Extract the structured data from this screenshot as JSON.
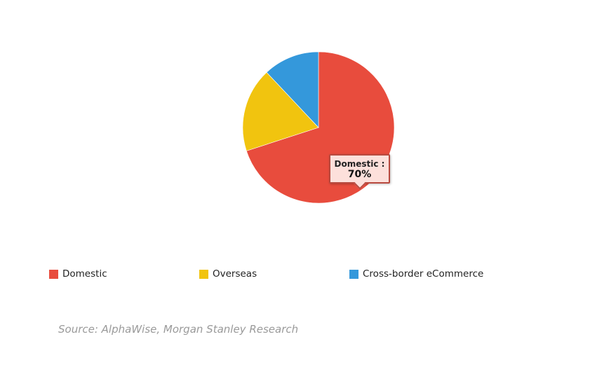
{
  "chart_data": {
    "type": "pie",
    "categories": [
      "Domestic",
      "Overseas",
      "Cross-border eCommerce"
    ],
    "values": [
      70,
      18,
      12
    ],
    "unit": "%",
    "colors": [
      "#e84c3d",
      "#f1c40f",
      "#3498db"
    ],
    "legend_position": "bottom",
    "legend": [
      {
        "label": "Domestic",
        "color": "#e84c3d"
      },
      {
        "label": "Overseas",
        "color": "#f1c40f"
      },
      {
        "label": "Cross-border eCommerce",
        "color": "#3498db"
      }
    ],
    "tooltip": {
      "label": "Domestic :",
      "value": "70%"
    }
  },
  "source": "Source: AlphaWise, Morgan Stanley Research"
}
